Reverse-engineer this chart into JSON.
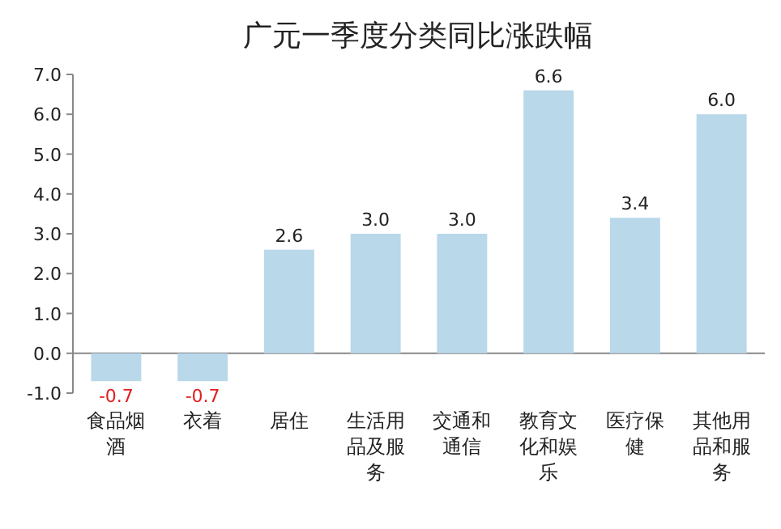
{
  "chart_data": {
    "type": "bar",
    "title": "广元一季度分类同比涨跌幅",
    "categories": [
      "食品烟酒",
      "衣着",
      "居住",
      "生活用品及服务",
      "交通和通信",
      "教育文化和娱乐",
      "医疗保健",
      "其他用品和服务"
    ],
    "values": [
      -0.7,
      -0.7,
      2.6,
      3.0,
      3.0,
      6.6,
      3.4,
      6.0
    ],
    "color": "#b9d8ea",
    "ylim": [
      -1,
      7
    ],
    "yticks": [
      {
        "value": -1,
        "label": "-1.0"
      },
      {
        "value": 0,
        "label": "0.0"
      },
      {
        "value": 1,
        "label": "1.0"
      },
      {
        "value": 2,
        "label": "2.0"
      },
      {
        "value": 3,
        "label": "3.0"
      },
      {
        "value": 4,
        "label": "4.0"
      },
      {
        "value": 5,
        "label": "5.0"
      },
      {
        "value": 6,
        "label": "6.0"
      },
      {
        "value": 7,
        "label": "7.0"
      }
    ],
    "value_labels": [
      "-0.7",
      "-0.7",
      "2.6",
      "3.0",
      "3.0",
      "6.6",
      "3.4",
      "6.0"
    ]
  }
}
